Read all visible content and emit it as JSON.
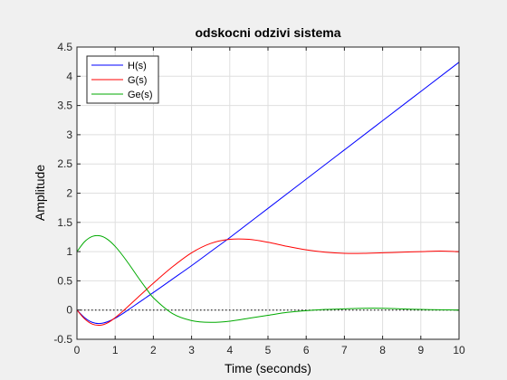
{
  "chart_data": {
    "type": "line",
    "title": "odskocni odzivi sistema",
    "xlabel": "Time (seconds)",
    "ylabel": "Amplitude",
    "xlim": [
      0,
      10
    ],
    "ylim": [
      -0.5,
      4.5
    ],
    "xticks": [
      "0",
      "1",
      "2",
      "3",
      "4",
      "5",
      "6",
      "7",
      "8",
      "9",
      "10"
    ],
    "yticks": [
      "-0.5",
      "0",
      "0.5",
      "1",
      "1.5",
      "2",
      "2.5",
      "3",
      "3.5",
      "4",
      "4.5"
    ],
    "grid": true,
    "legend_position": "top-left",
    "reference_line": {
      "y": 0,
      "style": "dotted",
      "color": "#000000"
    },
    "series": [
      {
        "name": "H(s)",
        "color": "#0000ff",
        "x": [
          0,
          0.2,
          0.4,
          0.6,
          0.8,
          1.0,
          1.2,
          1.4,
          1.6,
          1.8,
          2.0,
          2.5,
          3.0,
          3.5,
          4.0,
          5.0,
          6.0,
          7.0,
          8.0,
          9.0,
          10.0
        ],
        "y": [
          0,
          -0.13,
          -0.21,
          -0.23,
          -0.2,
          -0.14,
          -0.06,
          0.03,
          0.12,
          0.21,
          0.3,
          0.53,
          0.76,
          1.0,
          1.24,
          1.74,
          2.24,
          2.74,
          3.24,
          3.74,
          4.24
        ]
      },
      {
        "name": "G(s)",
        "color": "#ff0000",
        "x": [
          0,
          0.2,
          0.4,
          0.6,
          0.8,
          1.0,
          1.2,
          1.4,
          1.6,
          1.8,
          2.0,
          2.5,
          3.0,
          3.5,
          4.0,
          4.5,
          5.0,
          5.5,
          6.0,
          6.5,
          7.0,
          7.5,
          8.0,
          8.5,
          9.0,
          9.5,
          10.0
        ],
        "y": [
          0,
          -0.15,
          -0.24,
          -0.26,
          -0.22,
          -0.13,
          -0.02,
          0.1,
          0.22,
          0.34,
          0.46,
          0.74,
          0.98,
          1.14,
          1.21,
          1.21,
          1.16,
          1.09,
          1.03,
          0.99,
          0.97,
          0.97,
          0.98,
          0.99,
          1.0,
          1.01,
          1.0
        ]
      },
      {
        "name": "Ge(s)",
        "color": "#00aa00",
        "x": [
          0,
          0.2,
          0.4,
          0.6,
          0.8,
          1.0,
          1.2,
          1.4,
          1.6,
          1.8,
          2.0,
          2.5,
          3.0,
          3.5,
          4.0,
          4.5,
          5.0,
          5.5,
          6.0,
          6.5,
          7.0,
          7.5,
          8.0,
          8.5,
          9.0,
          9.5,
          10.0
        ],
        "y": [
          1.0,
          1.17,
          1.26,
          1.27,
          1.21,
          1.09,
          0.93,
          0.75,
          0.56,
          0.38,
          0.21,
          -0.06,
          -0.18,
          -0.21,
          -0.19,
          -0.14,
          -0.09,
          -0.04,
          -0.01,
          0.01,
          0.02,
          0.03,
          0.03,
          0.02,
          0.01,
          0.005,
          0.0
        ]
      }
    ]
  }
}
